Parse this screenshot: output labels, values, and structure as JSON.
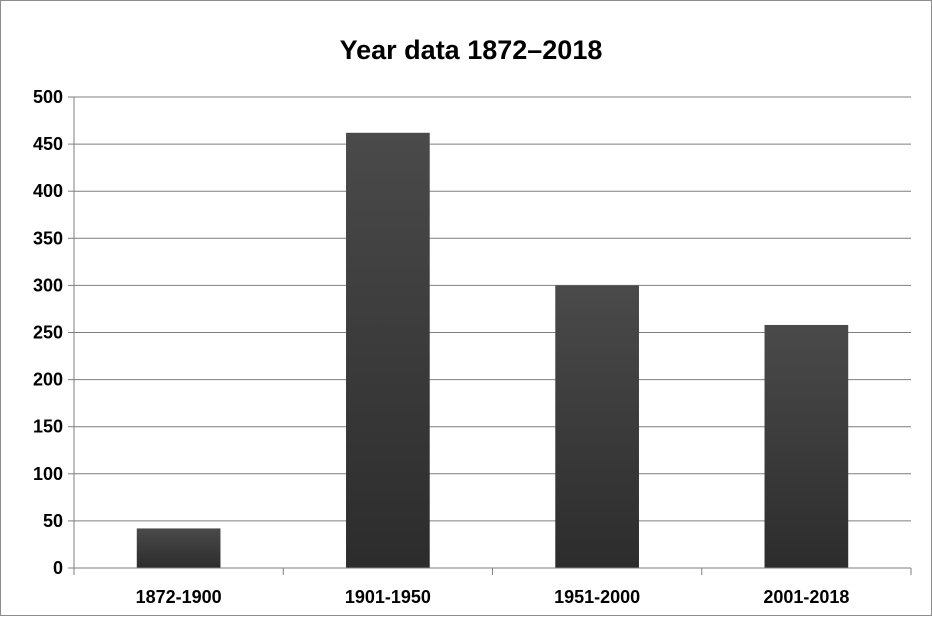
{
  "chart_data": {
    "type": "bar",
    "title": "Year data 1872–2018",
    "categories": [
      "1872-1900",
      "1901-1950",
      "1951-2000",
      "2001-2018"
    ],
    "values": [
      42,
      462,
      300,
      258
    ],
    "xlabel": "",
    "ylabel": "",
    "ylim": [
      0,
      500
    ],
    "yticks": [
      "0",
      "50",
      "100",
      "150",
      "200",
      "250",
      "300",
      "350",
      "400",
      "450",
      "500"
    ],
    "grid": true,
    "legend": "none",
    "bar_color_top": "#4a4a4a",
    "bar_color_bottom": "#2c2c2c",
    "gridline_color": "#7f7f7f"
  }
}
